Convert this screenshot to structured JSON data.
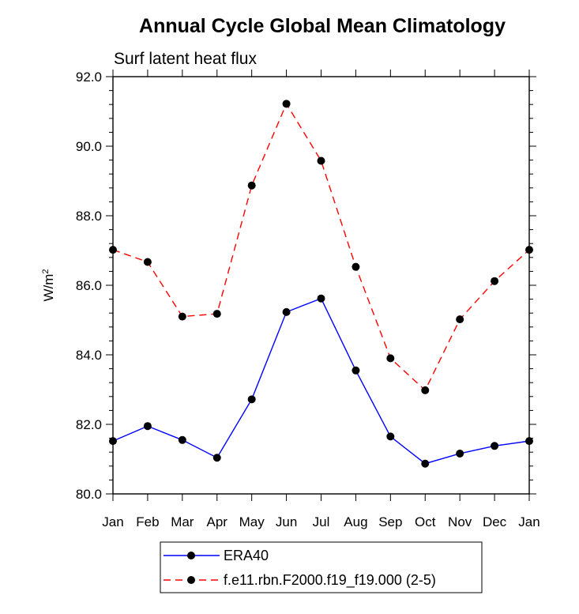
{
  "chart_data": {
    "type": "line",
    "title": "Annual Cycle Global Mean Climatology",
    "subtitle": "Surf latent heat flux",
    "xlabel": "",
    "ylabel": "W/m",
    "ylabel_superscript": "2",
    "ylim": [
      80.0,
      92.0
    ],
    "yticks": [
      "80.0",
      "82.0",
      "84.0",
      "86.0",
      "88.0",
      "90.0",
      "92.0"
    ],
    "categories": [
      "Jan",
      "Feb",
      "Mar",
      "Apr",
      "May",
      "Jun",
      "Jul",
      "Aug",
      "Sep",
      "Oct",
      "Nov",
      "Dec",
      "Jan"
    ],
    "series": [
      {
        "name": "ERA40",
        "color": "#0000ff",
        "dash": "solid",
        "values": [
          81.52,
          81.95,
          81.55,
          81.04,
          82.72,
          85.23,
          85.62,
          83.55,
          81.65,
          80.87,
          81.16,
          81.38,
          81.52
        ]
      },
      {
        "name": "f.e11.rbn.F2000.f19_f19.000 (2-5)",
        "color": "#ff0000",
        "dash": "dashed",
        "values": [
          87.02,
          86.67,
          85.1,
          85.18,
          88.87,
          91.22,
          89.58,
          86.53,
          83.9,
          82.98,
          85.02,
          86.12,
          87.02
        ]
      }
    ],
    "legend_position": "bottom-center"
  }
}
